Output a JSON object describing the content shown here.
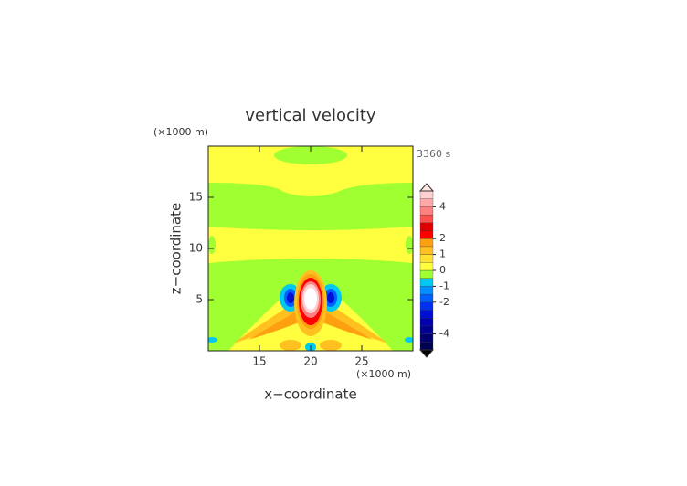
{
  "chart_data": {
    "type": "contour",
    "title": "vertical velocity",
    "time_label": "3360 s",
    "x_label": "x−coordinate",
    "y_label": "z−coordinate",
    "x_unit_label": "(×1000 m)",
    "y_unit_label": "(×1000 m)",
    "xlim": [
      10,
      30
    ],
    "ylim": [
      0,
      20
    ],
    "xticks": [
      15,
      20,
      25
    ],
    "yticks": [
      5,
      10,
      15
    ],
    "colorbar": {
      "levels": [
        -5,
        -4.5,
        -4,
        -3.5,
        -3,
        -2.5,
        -2,
        -1.5,
        -1,
        -0.5,
        0,
        0.5,
        1,
        1.5,
        2,
        2.5,
        3,
        3.5,
        4,
        4.5,
        5
      ],
      "colors": [
        "#000050",
        "#000070",
        "#000090",
        "#0000b0",
        "#0010d0",
        "#0030f0",
        "#0060ff",
        "#0090ff",
        "#00c8f0",
        "#a0ff30",
        "#ffff40",
        "#ffe030",
        "#ffc020",
        "#ffa010",
        "#ff0000",
        "#e00000",
        "#ff5050",
        "#ff8080",
        "#ffa8a8",
        "#ffd0d0"
      ],
      "ticks": [
        -4,
        -2,
        -1,
        0,
        1,
        2,
        4
      ],
      "extend_colors": [
        "#000000",
        "#ffe4e4"
      ]
    }
  }
}
